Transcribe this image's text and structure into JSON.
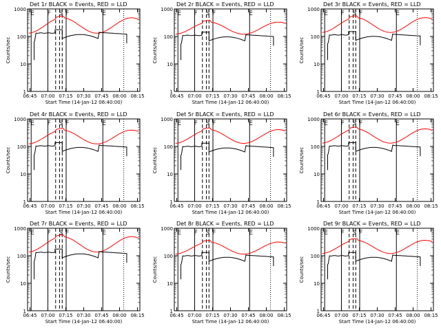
{
  "chart_data": {
    "type": "line",
    "layout": "3x3",
    "x_tick_labels": [
      "06:45",
      "07:00",
      "07:15",
      "07:30",
      "07:45",
      "08:00",
      "08:15"
    ],
    "x_range_minutes": [
      42,
      79
    ],
    "y_tick_labels": [
      "1",
      "10",
      "100",
      "1000"
    ],
    "ylim": [
      1,
      1000
    ],
    "yscale": "log",
    "ylabel": "Counts/sec",
    "xlabel": "Start Time (14-Jan-12 06:40:00)",
    "series_colors": {
      "events": "#000000",
      "lld": "#ff0000"
    },
    "series_names": [
      "BLACK = Events",
      "RED = LLD"
    ],
    "markers": [
      {
        "label": "E",
        "t": 6.0,
        "style": "solid"
      },
      {
        "label": "F",
        "t": 20.0,
        "style": "solid"
      },
      {
        "label": "",
        "t": 26.5,
        "style": "dashed"
      },
      {
        "label": "S",
        "t": 29.8,
        "style": "dashed"
      },
      {
        "label": "",
        "t": 32.0,
        "style": "dashed"
      },
      {
        "label": "F",
        "t": 35.3,
        "style": "solid"
      },
      {
        "label": "E",
        "t": 66.0,
        "style": "solid"
      },
      {
        "label": "",
        "t": 83.5,
        "style": "dotted"
      }
    ],
    "panels": [
      {
        "title": "Det 1r BLACK = Events, RED = LLD",
        "events_level": 140,
        "lld_level": 250,
        "lld_amp": 0.28
      },
      {
        "title": "Det 2r BLACK = Events, RED = LLD",
        "events_level": 115,
        "lld_level": 200,
        "lld_amp": 0.22
      },
      {
        "title": "Det 3r BLACK = Events, RED = LLD",
        "events_level": 120,
        "lld_level": 260,
        "lld_amp": 0.27
      },
      {
        "title": "Det 4r BLACK = Events, RED = LLD",
        "events_level": 110,
        "lld_level": 220,
        "lld_amp": 0.25
      },
      {
        "title": "Det 5r BLACK = Events, RED = LLD",
        "events_level": 105,
        "lld_level": 230,
        "lld_amp": 0.25
      },
      {
        "title": "Det 6r BLACK = Events, RED = LLD",
        "events_level": 110,
        "lld_level": 240,
        "lld_amp": 0.26
      },
      {
        "title": "Det 7r BLACK = Events, RED = LLD",
        "events_level": 140,
        "lld_level": 260,
        "lld_amp": 0.28
      },
      {
        "title": "Det 8r BLACK = Events, RED = LLD",
        "events_level": 105,
        "lld_level": 190,
        "lld_amp": 0.22
      },
      {
        "title": "Det 9r BLACK = Events, RED = LLD",
        "events_level": 105,
        "lld_level": 210,
        "lld_amp": 0.24
      }
    ]
  }
}
